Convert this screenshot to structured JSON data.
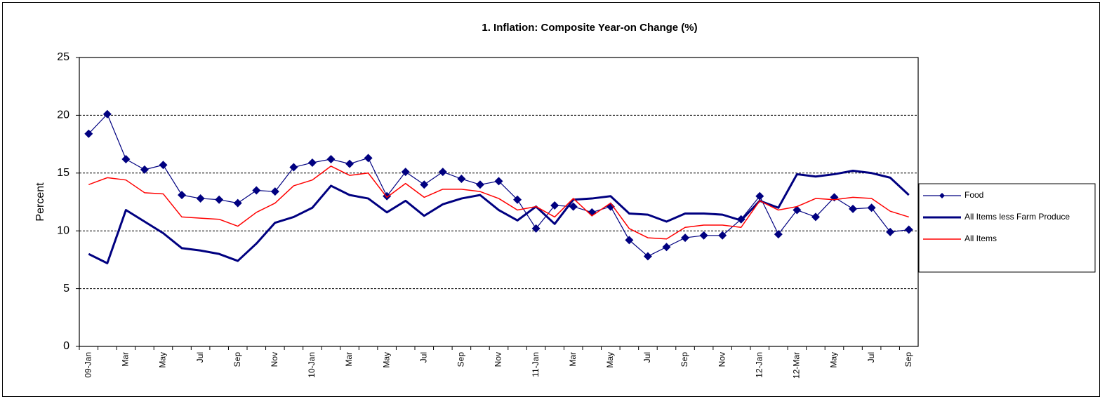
{
  "chart_data": {
    "type": "line",
    "title": "1. Inflation: Composite Year-on Change (%)",
    "y_label": "Percent",
    "categories": [
      "09-Jan",
      null,
      "Mar",
      null,
      "May",
      null,
      "Jul",
      null,
      "Sep",
      null,
      "Nov",
      null,
      "10-Jan",
      null,
      "Mar",
      null,
      "May",
      null,
      "Jul",
      null,
      "Sep",
      null,
      "Nov",
      null,
      "11-Jan",
      null,
      "Mar",
      null,
      "May",
      null,
      "Jul",
      null,
      "Sep",
      null,
      "Nov",
      null,
      "12-Jan",
      null,
      "12-Mar",
      null,
      "May",
      null,
      "Jul",
      null,
      "Sep"
    ],
    "series": [
      {
        "name": "Food",
        "color": "#000080",
        "width": 1.2,
        "marker": "diamond",
        "values": [
          18.4,
          20.1,
          16.2,
          15.3,
          15.7,
          13.1,
          12.8,
          12.7,
          12.4,
          13.5,
          13.4,
          15.5,
          15.9,
          16.2,
          15.8,
          16.3,
          13.0,
          15.1,
          14.0,
          15.1,
          14.5,
          14.0,
          14.3,
          12.7,
          10.2,
          12.2,
          12.1,
          11.6,
          12.1,
          9.2,
          7.8,
          8.6,
          9.4,
          9.6,
          9.6,
          11.0,
          13.0,
          9.7,
          11.8,
          11.2,
          12.9,
          11.9,
          12.0,
          9.9,
          10.1
        ]
      },
      {
        "name": "All Items less Farm Produce",
        "color": "#000080",
        "width": 3,
        "marker": null,
        "values": [
          8.0,
          7.2,
          11.8,
          10.8,
          9.8,
          8.5,
          8.3,
          8.0,
          7.4,
          8.9,
          10.7,
          11.2,
          12.0,
          13.9,
          13.1,
          12.8,
          11.6,
          12.6,
          11.3,
          12.3,
          12.8,
          13.1,
          11.8,
          10.9,
          12.1,
          10.6,
          12.7,
          12.8,
          13.0,
          11.5,
          11.4,
          10.8,
          11.5,
          11.5,
          11.4,
          10.9,
          12.6,
          12.0,
          14.9,
          14.7,
          14.9,
          15.2,
          15.0,
          14.6,
          13.1
        ]
      },
      {
        "name": "All Items",
        "color": "#ff0000",
        "width": 1.5,
        "marker": null,
        "values": [
          14.0,
          14.6,
          14.4,
          13.3,
          13.2,
          11.2,
          11.1,
          11.0,
          10.4,
          11.6,
          12.4,
          13.9,
          14.4,
          15.6,
          14.8,
          15.0,
          12.9,
          14.1,
          12.9,
          13.6,
          13.6,
          13.4,
          12.8,
          11.8,
          12.1,
          11.2,
          12.8,
          11.3,
          12.4,
          10.2,
          9.4,
          9.3,
          10.3,
          10.5,
          10.5,
          10.3,
          12.6,
          11.8,
          12.1,
          12.8,
          12.7,
          12.9,
          12.8,
          11.7,
          11.2
        ]
      }
    ],
    "ylim": [
      0,
      25
    ],
    "yticks": [
      0,
      5,
      10,
      15,
      20,
      25
    ],
    "grid": true,
    "legend": "right"
  }
}
